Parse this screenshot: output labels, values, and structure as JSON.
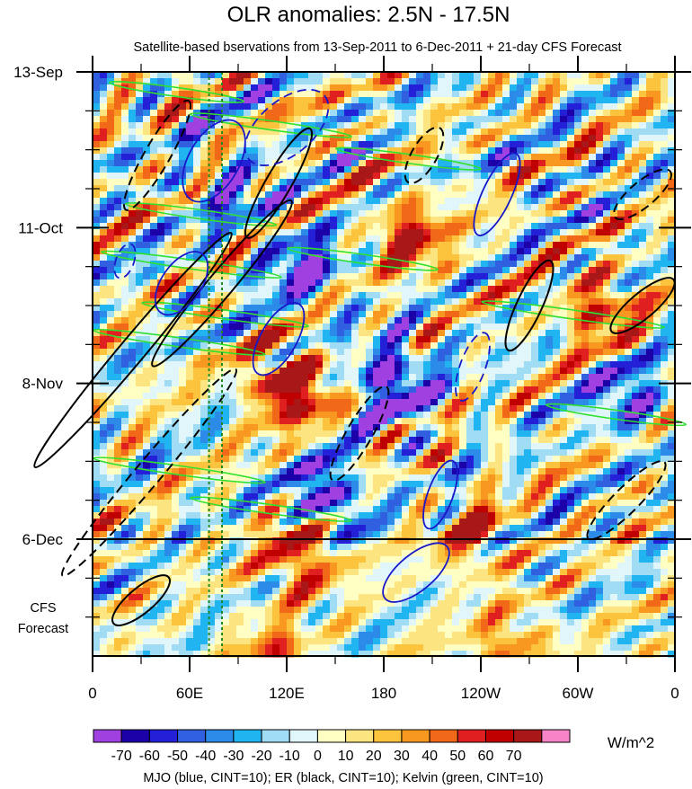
{
  "chart_data": {
    "type": "heatmap",
    "title": "OLR anomalies: 2.5N - 17.5N",
    "subtitle": "Satellite-based bservations from 13-Sep-2011 to 6-Dec-2011 + 21-day CFS Forecast",
    "xaxis": {
      "description": "Longitude",
      "tick_labels": [
        "0",
        "60E",
        "120E",
        "180",
        "120W",
        "60W",
        "0"
      ],
      "tick_values_deg_east": [
        0,
        60,
        120,
        180,
        240,
        300,
        360
      ],
      "range": [
        0,
        360
      ]
    },
    "yaxis": {
      "description": "Time",
      "tick_labels": [
        "13-Sep",
        "11-Oct",
        "8-Nov",
        "6-Dec"
      ],
      "tick_day_offsets": [
        0,
        28,
        56,
        84
      ],
      "range_days": [
        0,
        105
      ],
      "direction": "downward",
      "forecast_start_day": 84,
      "forecast_label": "CFS\nForecast"
    },
    "colorbar": {
      "unit": "W/m^2",
      "levels": [
        -70,
        -60,
        -50,
        -40,
        -30,
        -20,
        -10,
        0,
        10,
        20,
        30,
        40,
        50,
        60,
        70
      ],
      "colors": [
        "#a040e0",
        "#1c00a8",
        "#2420d8",
        "#3060e0",
        "#2c8ae8",
        "#20b4f0",
        "#a0dcf4",
        "#e0f6fa",
        "#ffffc4",
        "#fce480",
        "#fcc43c",
        "#f89820",
        "#f06818",
        "#e02020",
        "#c00000",
        "#a81818",
        "#f884c8"
      ]
    },
    "contour_series": [
      {
        "name": "MJO",
        "color": "blue",
        "cint": 10,
        "hex": "#1818c8"
      },
      {
        "name": "ER",
        "color": "black",
        "cint": 10,
        "hex": "#000000"
      },
      {
        "name": "Kelvin",
        "color": "green",
        "cint": 10,
        "hex": "#30e030"
      }
    ],
    "reference_lines_deg_east": [
      72,
      80
    ],
    "footer": "MJO (blue, CINT=10); ER (black, CINT=10); Kelvin (green, CINT=10)"
  }
}
